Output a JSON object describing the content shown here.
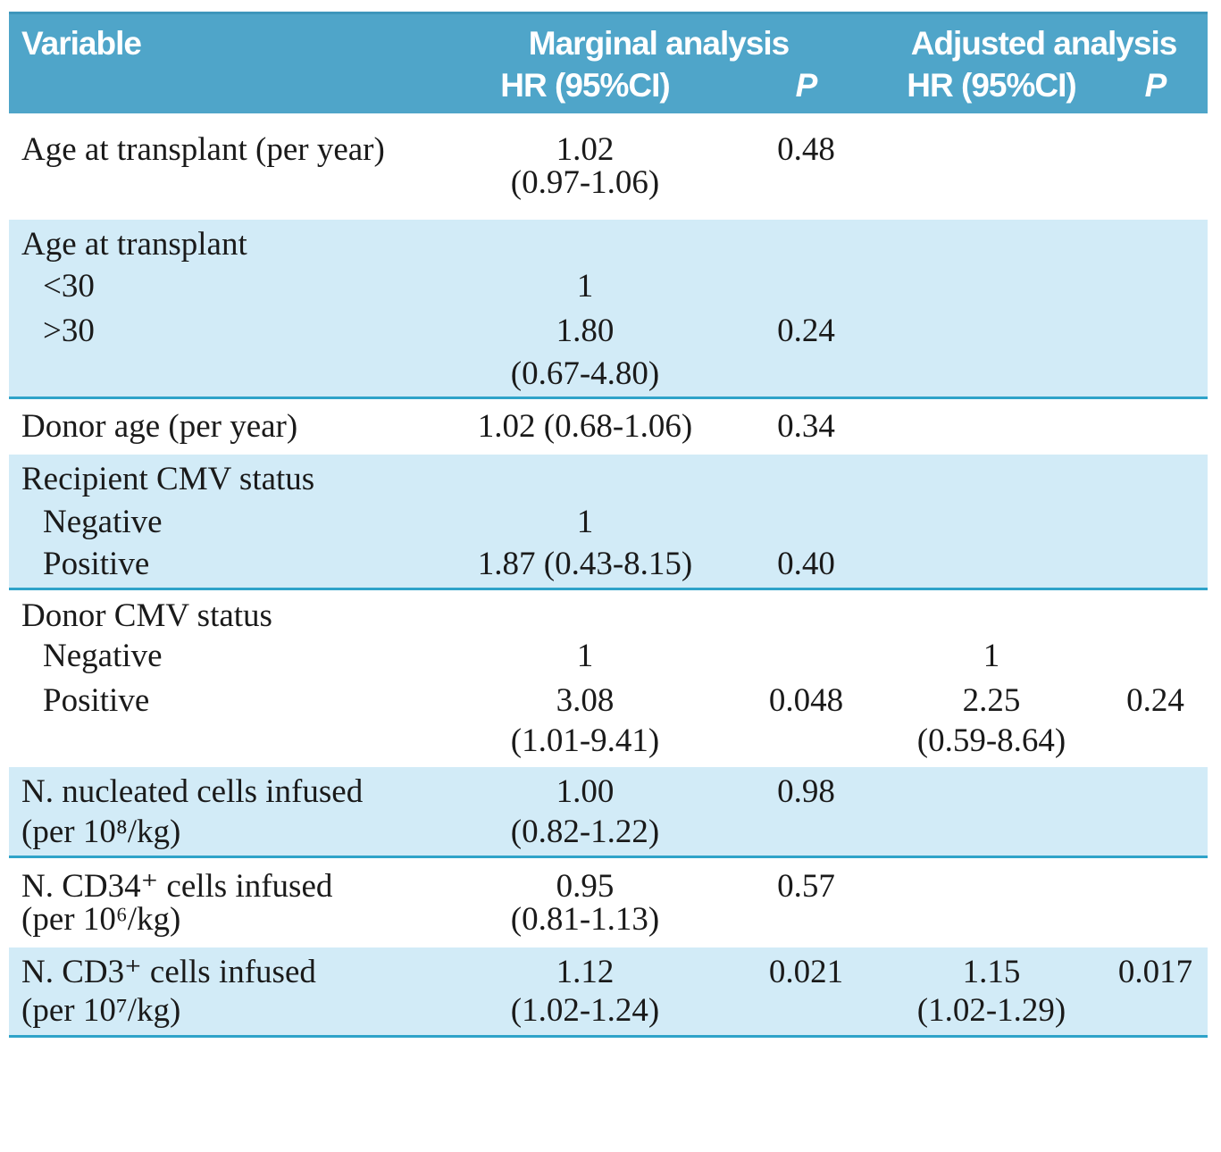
{
  "table": {
    "header": {
      "variable": "Variable",
      "marginal_group": "Marginal analysis",
      "adjusted_group": "Adjusted analysis",
      "marginal_hr_label": "HR (95%CI)",
      "marginal_p_label": "P",
      "adjusted_hr_label": "HR (95%CI)",
      "adjusted_p_label": "P"
    },
    "colors": {
      "header_bg": "#4fa5c9",
      "alt_row_bg": "#d2ebf7",
      "divider": "#2fa3c9",
      "header_text": "#ffffff",
      "body_text": "#1a1a1a"
    },
    "sections": [
      {
        "bg": "white",
        "rows": [
          {
            "variable": "Age at transplant (per year)",
            "m_hr": "1.02",
            "m_p": "0.48",
            "a_hr": "",
            "a_p": ""
          },
          {
            "variable": "",
            "m_hr": "(0.97-1.06)",
            "m_p": "",
            "a_hr": "",
            "a_p": ""
          }
        ]
      },
      {
        "bg": "blue",
        "rows": [
          {
            "variable": "Age at transplant",
            "m_hr": "",
            "m_p": "",
            "a_hr": "",
            "a_p": ""
          },
          {
            "variable": "<30",
            "indent": true,
            "m_hr": "1",
            "m_p": "",
            "a_hr": "",
            "a_p": ""
          },
          {
            "variable": ">30",
            "indent": true,
            "m_hr": "1.80",
            "m_p": "0.24",
            "a_hr": "",
            "a_p": ""
          },
          {
            "variable": "",
            "m_hr": "(0.67-4.80)",
            "m_p": "",
            "a_hr": "",
            "a_p": ""
          }
        ]
      },
      {
        "bg": "white",
        "rows": [
          {
            "variable": "Donor age (per year)",
            "m_hr": "1.02 (0.68-1.06)",
            "m_p": "0.34",
            "a_hr": "",
            "a_p": ""
          }
        ]
      },
      {
        "bg": "blue",
        "rows": [
          {
            "variable": "Recipient CMV status",
            "m_hr": "",
            "m_p": "",
            "a_hr": "",
            "a_p": ""
          },
          {
            "variable": "Negative",
            "indent": true,
            "m_hr": "1",
            "m_p": "",
            "a_hr": "",
            "a_p": ""
          },
          {
            "variable": "Positive",
            "indent": true,
            "m_hr": "1.87 (0.43-8.15)",
            "m_p": "0.40",
            "a_hr": "",
            "a_p": ""
          }
        ]
      },
      {
        "bg": "white",
        "rows": [
          {
            "variable": "Donor CMV status",
            "m_hr": "",
            "m_p": "",
            "a_hr": "",
            "a_p": ""
          },
          {
            "variable": "Negative",
            "indent": true,
            "m_hr": "1",
            "m_p": "",
            "a_hr": "1",
            "a_p": ""
          },
          {
            "variable": "Positive",
            "indent": true,
            "m_hr": "3.08",
            "m_p": "0.048",
            "a_hr": "2.25",
            "a_p": "0.24"
          },
          {
            "variable": "",
            "m_hr": "(1.01-9.41)",
            "m_p": "",
            "a_hr": "(0.59-8.64)",
            "a_p": ""
          }
        ]
      },
      {
        "bg": "blue",
        "rows": [
          {
            "variable": "N. nucleated cells infused",
            "m_hr": "1.00",
            "m_p": "0.98",
            "a_hr": "",
            "a_p": ""
          },
          {
            "variable": "(per 10⁸/kg)",
            "m_hr": "(0.82-1.22)",
            "m_p": "",
            "a_hr": "",
            "a_p": ""
          }
        ]
      },
      {
        "bg": "white",
        "rows": [
          {
            "variable": "N. CD34⁺ cells infused",
            "m_hr": "0.95",
            "m_p": "0.57",
            "a_hr": "",
            "a_p": ""
          },
          {
            "variable": "(per 10⁶/kg)",
            "m_hr": "(0.81-1.13)",
            "m_p": "",
            "a_hr": "",
            "a_p": ""
          }
        ]
      },
      {
        "bg": "blue",
        "rows": [
          {
            "variable": "N. CD3⁺ cells infused",
            "m_hr": "1.12",
            "m_p": "0.021",
            "a_hr": "1.15",
            "a_p": "0.017"
          },
          {
            "variable": "(per 10⁷/kg)",
            "m_hr": "(1.02-1.24)",
            "m_p": "",
            "a_hr": "(1.02-1.29)",
            "a_p": ""
          }
        ]
      }
    ]
  }
}
